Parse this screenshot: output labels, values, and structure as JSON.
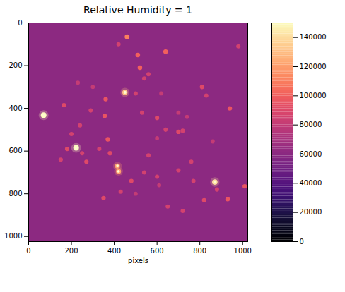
{
  "chart_data": {
    "type": "image",
    "title": "Relative Humidity = 1",
    "xlabel": "pixels",
    "xlim": [
      0,
      1024
    ],
    "ylim": [
      0,
      1024
    ],
    "xticks": [
      0,
      200,
      400,
      600,
      800,
      1000
    ],
    "yticks": [
      0,
      200,
      400,
      600,
      800,
      1000
    ],
    "background_value": 60000,
    "sources": {
      "x": [
        70,
        222,
        870,
        450,
        415,
        420,
        460,
        510,
        640,
        520,
        360,
        355,
        290,
        165,
        370,
        330,
        380,
        600,
        640,
        700,
        720,
        740,
        810,
        830,
        940,
        760,
        700,
        560,
        600,
        480,
        430,
        500,
        350,
        650,
        720,
        820,
        930,
        1010,
        980,
        770,
        540,
        560,
        500,
        530,
        620,
        700,
        180,
        250,
        270,
        150,
        230,
        300,
        420,
        240,
        200,
        540,
        610,
        880,
        600,
        860
      ],
      "y": [
        432,
        585,
        745,
        325,
        670,
        695,
        65,
        150,
        135,
        210,
        357,
        435,
        410,
        385,
        545,
        590,
        610,
        445,
        500,
        510,
        505,
        440,
        300,
        340,
        400,
        650,
        690,
        620,
        720,
        740,
        790,
        800,
        820,
        860,
        880,
        830,
        825,
        765,
        110,
        740,
        260,
        240,
        330,
        420,
        330,
        420,
        590,
        610,
        650,
        640,
        280,
        300,
        100,
        480,
        520,
        700,
        760,
        780,
        540,
        555
      ],
      "values": [
        150000,
        150000,
        140000,
        130000,
        120000,
        120000,
        110000,
        100000,
        100000,
        100000,
        95000,
        95000,
        85000,
        90000,
        95000,
        85000,
        90000,
        90000,
        85000,
        90000,
        85000,
        80000,
        90000,
        85000,
        95000,
        85000,
        85000,
        85000,
        85000,
        90000,
        85000,
        80000,
        90000,
        85000,
        85000,
        90000,
        95000,
        95000,
        85000,
        85000,
        85000,
        85000,
        85000,
        85000,
        80000,
        80000,
        90000,
        85000,
        90000,
        85000,
        80000,
        80000,
        85000,
        85000,
        85000,
        85000,
        80000,
        85000,
        80000,
        80000
      ]
    },
    "colorbar": {
      "range": [
        0,
        150000
      ],
      "ticks": [
        0,
        20000,
        40000,
        60000,
        80000,
        100000,
        120000,
        140000
      ]
    }
  }
}
